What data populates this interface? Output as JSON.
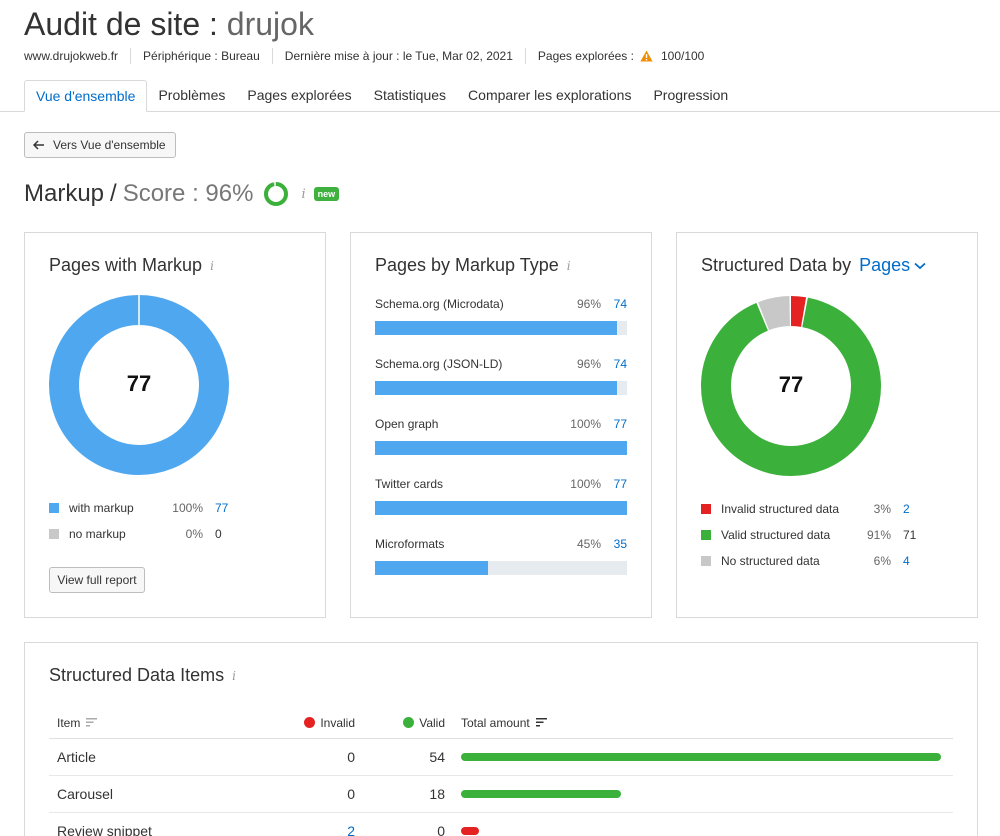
{
  "header": {
    "title_prefix": "Audit de site :",
    "project": "drujok",
    "domain": "www.drujokweb.fr",
    "device": "Périphérique : Bureau",
    "updated": "Dernière mise à jour : le Tue, Mar 02, 2021",
    "pages_label": "Pages explorées :",
    "pages_value": "100/100"
  },
  "tabs": [
    {
      "label": "Vue d'ensemble",
      "active": true
    },
    {
      "label": "Problèmes"
    },
    {
      "label": "Pages explorées"
    },
    {
      "label": "Statistiques"
    },
    {
      "label": "Comparer les explorations"
    },
    {
      "label": "Progression"
    }
  ],
  "back_button": "Vers Vue d'ensemble",
  "section": {
    "name": "Markup",
    "slash": "/",
    "score": "Score : 96%",
    "score_value": 96,
    "badge": "new"
  },
  "pages_with_markup": {
    "title": "Pages with Markup",
    "total": "77",
    "legend": [
      {
        "label": "with markup",
        "pct": "100%",
        "count": "77",
        "color": "#4fa8ef"
      },
      {
        "label": "no markup",
        "pct": "0%",
        "count": "0",
        "color": "#c8c8c8"
      }
    ],
    "button": "View full report"
  },
  "markup_types": {
    "title": "Pages by Markup Type",
    "rows": [
      {
        "name": "Schema.org (Microdata)",
        "pct": "96%",
        "count": "74",
        "value": 96
      },
      {
        "name": "Schema.org (JSON-LD)",
        "pct": "96%",
        "count": "74",
        "value": 96
      },
      {
        "name": "Open graph",
        "pct": "100%",
        "count": "77",
        "value": 100
      },
      {
        "name": "Twitter cards",
        "pct": "100%",
        "count": "77",
        "value": 100
      },
      {
        "name": "Microformats",
        "pct": "45%",
        "count": "35",
        "value": 45
      }
    ]
  },
  "structured_data": {
    "title": "Structured Data by",
    "selector": "Pages",
    "total": "77",
    "legend": [
      {
        "label": "Invalid structured data",
        "pct": "3%",
        "count": "2",
        "color": "#e52222",
        "value": 3
      },
      {
        "label": "Valid structured data",
        "pct": "91%",
        "count": "71",
        "color": "#3bb03b",
        "value": 91
      },
      {
        "label": "No structured data",
        "pct": "6%",
        "count": "4",
        "color": "#c8c8c8",
        "value": 6
      }
    ]
  },
  "items_table": {
    "title": "Structured Data Items",
    "headers": {
      "item": "Item",
      "invalid": "Invalid",
      "valid": "Valid",
      "total": "Total amount"
    },
    "rows": [
      {
        "item": "Article",
        "invalid": "0",
        "valid": "54",
        "total": 54,
        "color": "#3bb03b"
      },
      {
        "item": "Carousel",
        "invalid": "0",
        "valid": "18",
        "total": 18,
        "color": "#3bb03b"
      },
      {
        "item": "Review snippet",
        "invalid": "2",
        "valid": "0",
        "total": 2,
        "color": "#e52222"
      }
    ],
    "max_total": 54
  }
}
